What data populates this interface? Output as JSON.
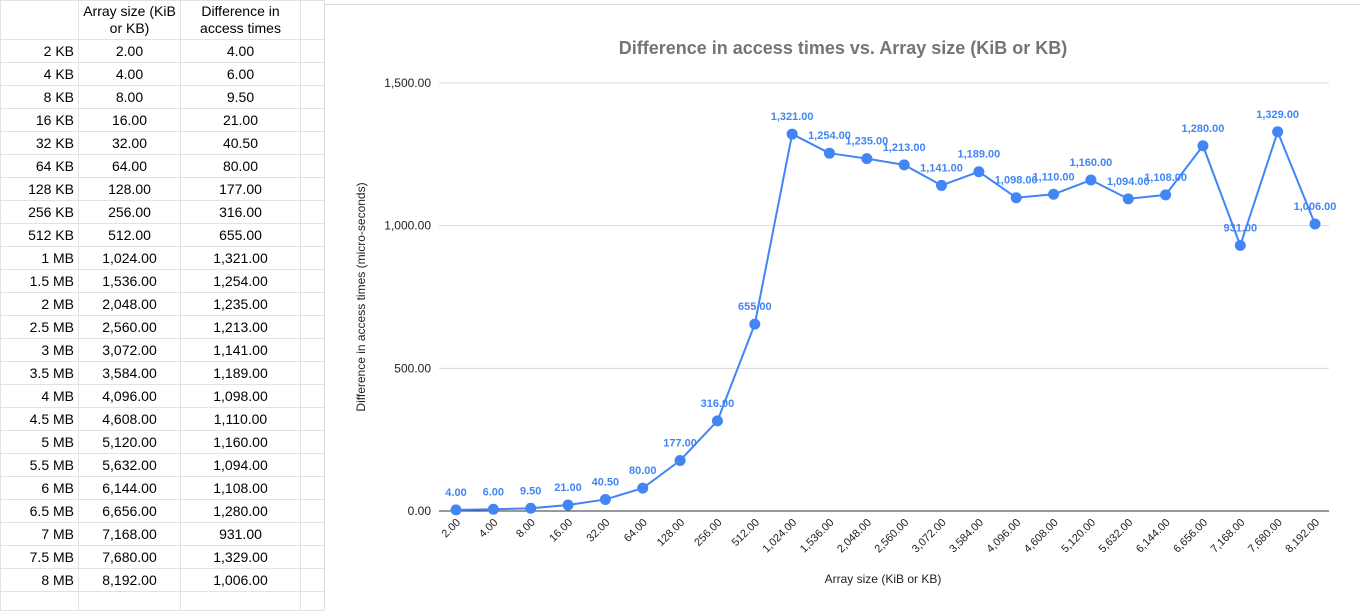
{
  "sheet": {
    "headers": [
      "",
      "Array size (KiB or KB)",
      "Difference in access times"
    ],
    "rows": [
      [
        "2 KB",
        "2.00",
        "4.00"
      ],
      [
        "4 KB",
        "4.00",
        "6.00"
      ],
      [
        "8 KB",
        "8.00",
        "9.50"
      ],
      [
        "16 KB",
        "16.00",
        "21.00"
      ],
      [
        "32 KB",
        "32.00",
        "40.50"
      ],
      [
        "64 KB",
        "64.00",
        "80.00"
      ],
      [
        "128 KB",
        "128.00",
        "177.00"
      ],
      [
        "256 KB",
        "256.00",
        "316.00"
      ],
      [
        "512 KB",
        "512.00",
        "655.00"
      ],
      [
        "1 MB",
        "1,024.00",
        "1,321.00"
      ],
      [
        "1.5 MB",
        "1,536.00",
        "1,254.00"
      ],
      [
        "2 MB",
        "2,048.00",
        "1,235.00"
      ],
      [
        "2.5 MB",
        "2,560.00",
        "1,213.00"
      ],
      [
        "3 MB",
        "3,072.00",
        "1,141.00"
      ],
      [
        "3.5 MB",
        "3,584.00",
        "1,189.00"
      ],
      [
        "4 MB",
        "4,096.00",
        "1,098.00"
      ],
      [
        "4.5 MB",
        "4,608.00",
        "1,110.00"
      ],
      [
        "5 MB",
        "5,120.00",
        "1,160.00"
      ],
      [
        "5.5 MB",
        "5,632.00",
        "1,094.00"
      ],
      [
        "6 MB",
        "6,144.00",
        "1,108.00"
      ],
      [
        "6.5 MB",
        "6,656.00",
        "1,280.00"
      ],
      [
        "7 MB",
        "7,168.00",
        "931.00"
      ],
      [
        "7.5 MB",
        "7,680.00",
        "1,329.00"
      ],
      [
        "8 MB",
        "8,192.00",
        "1,006.00"
      ]
    ]
  },
  "colors": {
    "series": "#4285f4",
    "grid": "#d9d9d9",
    "title": "#757575",
    "axis_text": "#222222"
  },
  "chart_data": {
    "type": "line",
    "title": "Difference in access times vs. Array size (KiB or KB)",
    "xlabel": "Array size (KiB or KB)",
    "ylabel": "Difference in access times (micro-seconds)",
    "categories": [
      "2.00",
      "4.00",
      "8.00",
      "16.00",
      "32.00",
      "64.00",
      "128.00",
      "256.00",
      "512.00",
      "1,024.00",
      "1,536.00",
      "2,048.00",
      "2,560.00",
      "3,072.00",
      "3,584.00",
      "4,096.00",
      "4,608.00",
      "5,120.00",
      "5,632.00",
      "6,144.00",
      "6,656.00",
      "7,168.00",
      "7,680.00",
      "8,192.00"
    ],
    "values": [
      4,
      6,
      9.5,
      21,
      40.5,
      80,
      177,
      316,
      655,
      1321,
      1254,
      1235,
      1213,
      1141,
      1189,
      1098,
      1110,
      1160,
      1094,
      1108,
      1280,
      931,
      1329,
      1006
    ],
    "value_labels": [
      "4.00",
      "6.00",
      "9.50",
      "21.00",
      "40.50",
      "80.00",
      "177.00",
      "316.00",
      "655.00",
      "1,321.00",
      "1,254.00",
      "1,235.00",
      "1,213.00",
      "1,141.00",
      "1,189.00",
      "1,098.00",
      "1,110.00",
      "1,160.00",
      "1,094.00",
      "1,108.00",
      "1,280.00",
      "931.00",
      "1,329.00",
      "1,006.00"
    ],
    "ylim": [
      0,
      1500
    ],
    "yticks": [
      0,
      500,
      1000,
      1500
    ],
    "ytick_labels": [
      "0.00",
      "500.00",
      "1,000.00",
      "1,500.00"
    ],
    "grid": true,
    "legend": "none"
  }
}
